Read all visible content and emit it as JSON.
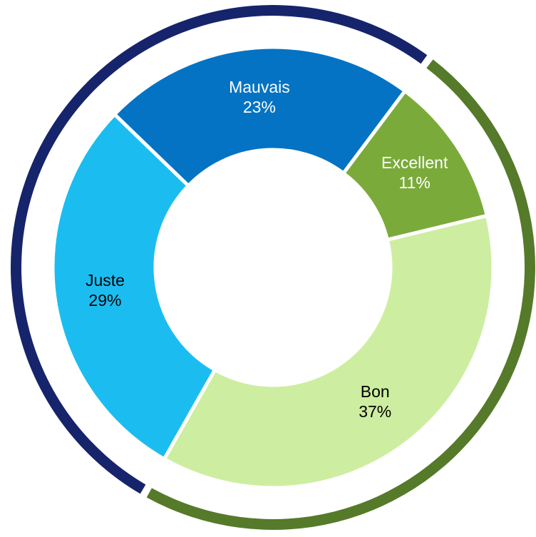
{
  "chart_data": {
    "type": "donut",
    "categories": [
      "Excellent",
      "Bon",
      "Juste",
      "Mauvais"
    ],
    "values": [
      11,
      37,
      29,
      23
    ],
    "value_labels": [
      "11%",
      "37%",
      "29%",
      "23%"
    ],
    "colors": [
      "#7aab3a",
      "#cdeea0",
      "#1bbdf0",
      "#0473c3"
    ],
    "label_colors": [
      "#ffffff",
      "#000000",
      "#000000",
      "#ffffff"
    ],
    "ring_colors": [
      "#557a2a",
      "#557a2a",
      "#16246b",
      "#16246b"
    ],
    "start_angle": 36.8
  }
}
